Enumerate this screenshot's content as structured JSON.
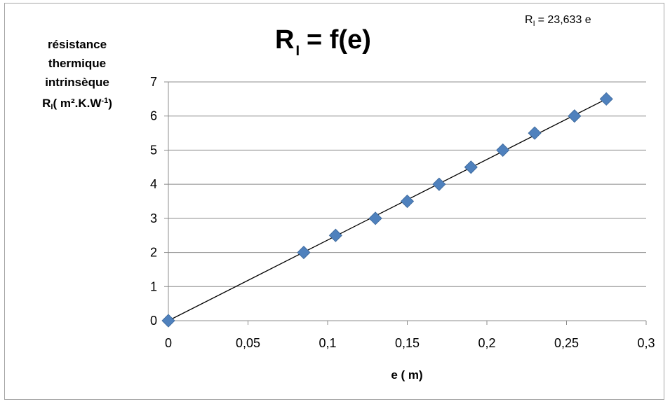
{
  "chart_data": {
    "type": "scatter",
    "title_main": "R",
    "title_sub": "I",
    "title_rest": "= f(e)",
    "equation_lhs": "R",
    "equation_sub": "I",
    "equation_rhs": "= 23,633  e",
    "ylabel_line1": "résistance",
    "ylabel_line2": "thermique",
    "ylabel_line3": "intrinsèque",
    "ylabel_R": "R",
    "ylabel_sub": "I",
    "ylabel_unit_a": "( m².K.W",
    "ylabel_sup": "-1",
    "ylabel_unit_b": ")",
    "xlabel": "e ( m)",
    "xlim": [
      0,
      0.3
    ],
    "ylim": [
      0,
      7
    ],
    "x_ticks": [
      "0",
      "0,05",
      "0,1",
      "0,15",
      "0,2",
      "0,25",
      "0,3"
    ],
    "y_ticks": [
      "0",
      "1",
      "2",
      "3",
      "4",
      "5",
      "6",
      "7"
    ],
    "grid": "horizontal",
    "marker_color": "#4f81bd",
    "trendline": {
      "slope": 23.633,
      "intercept": 0,
      "color": "#000000"
    },
    "series": [
      {
        "x": [
          0,
          0.085,
          0.105,
          0.13,
          0.15,
          0.17,
          0.19,
          0.21,
          0.23,
          0.255,
          0.275
        ],
        "y": [
          0,
          2,
          2.5,
          3,
          3.5,
          4,
          4.5,
          5,
          5.5,
          6,
          6.5
        ]
      }
    ]
  }
}
